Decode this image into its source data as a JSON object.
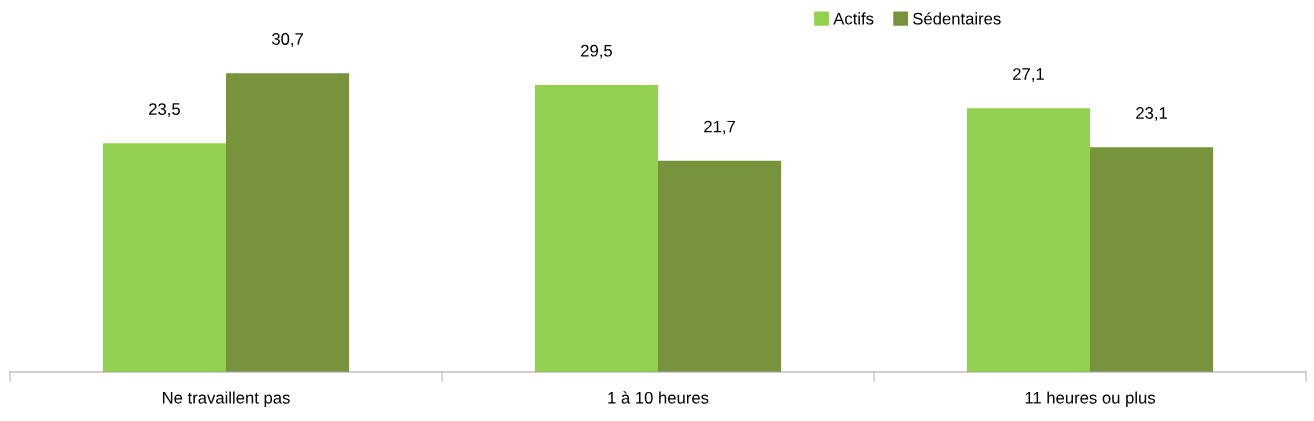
{
  "chart_data": {
    "type": "bar",
    "categories": [
      "Ne travaillent pas",
      "1 à 10 heures",
      "11 heures ou plus"
    ],
    "series": [
      {
        "name": "Actifs",
        "color": "#92d050",
        "values": [
          23.5,
          29.5,
          27.1
        ],
        "value_labels": [
          "23,5",
          "29,5",
          "27,1"
        ]
      },
      {
        "name": "Sédentaires",
        "color": "#77933c",
        "values": [
          30.7,
          21.7,
          23.1
        ],
        "value_labels": [
          "30,7",
          "21,7",
          "23,1"
        ]
      }
    ],
    "grid": false,
    "legend": "top right"
  }
}
